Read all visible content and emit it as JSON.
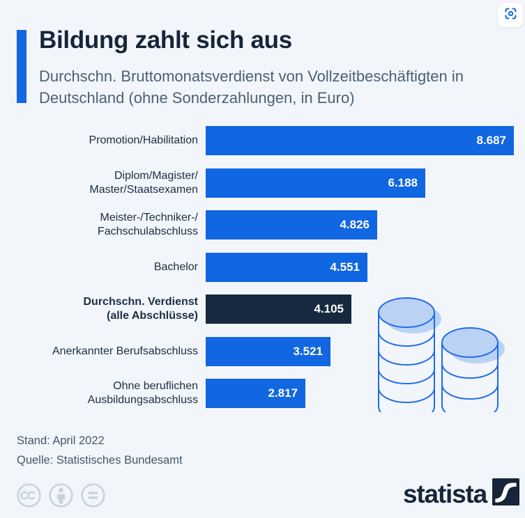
{
  "header": {
    "title": "Bildung zahlt sich aus",
    "subtitle": "Durchschn. Bruttomonatsverdienst von Vollzeitbeschäftigten in Deutschland (ohne Sonderzahlungen, in Euro)"
  },
  "chart_data": {
    "type": "bar",
    "orientation": "horizontal",
    "title": "Bildung zahlt sich aus",
    "subtitle": "Durchschn. Bruttomonatsverdienst von Vollzeitbeschäftigten in Deutschland (ohne Sonderzahlungen, in Euro)",
    "unit": "Euro",
    "grid": false,
    "legend": false,
    "xlim": [
      0,
      8687
    ],
    "categories": [
      "Promotion/Habilitation",
      "Diplom/Magister/\nMaster/Staatsexamen",
      "Meister-/Techniker-/\nFachschulabschluss",
      "Bachelor",
      "Durchschn. Verdienst\n(alle Abschlüsse)",
      "Anerkannter Berufsabschluss",
      "Ohne beruflichen\nAusbildungsabschluss"
    ],
    "values": [
      8687,
      6188,
      4826,
      4551,
      4105,
      3521,
      2817
    ],
    "value_labels": [
      "8.687",
      "6.188",
      "4.826",
      "4.551",
      "4.105",
      "3.521",
      "2.817"
    ],
    "highlight_index": 4,
    "highlight_meaning": "average across all degrees"
  },
  "footer": {
    "stand": "Stand: April 2022",
    "source": "Quelle: Statistisches Bundesamt"
  },
  "branding": {
    "logo_text": "statista"
  },
  "icons": {
    "top_right": "snapshot-icon",
    "license": [
      "cc-icon",
      "attribution-icon",
      "equal-icon"
    ],
    "illustration": "coin-stacks-illustration"
  },
  "colors": {
    "background": "#f2f6fa",
    "accent": "#1467e2",
    "bar_blue": "#1166e1",
    "bar_dark": "#16293f",
    "title": "#16253b",
    "subtitle": "#4a6077",
    "label": "#1d2d42",
    "footer_text": "#45576b",
    "cc_gray": "#c9d3dd",
    "coin_outline": "#1f6bf0",
    "coin_fill": "#bad3f4",
    "value_text": "#ffffff"
  }
}
